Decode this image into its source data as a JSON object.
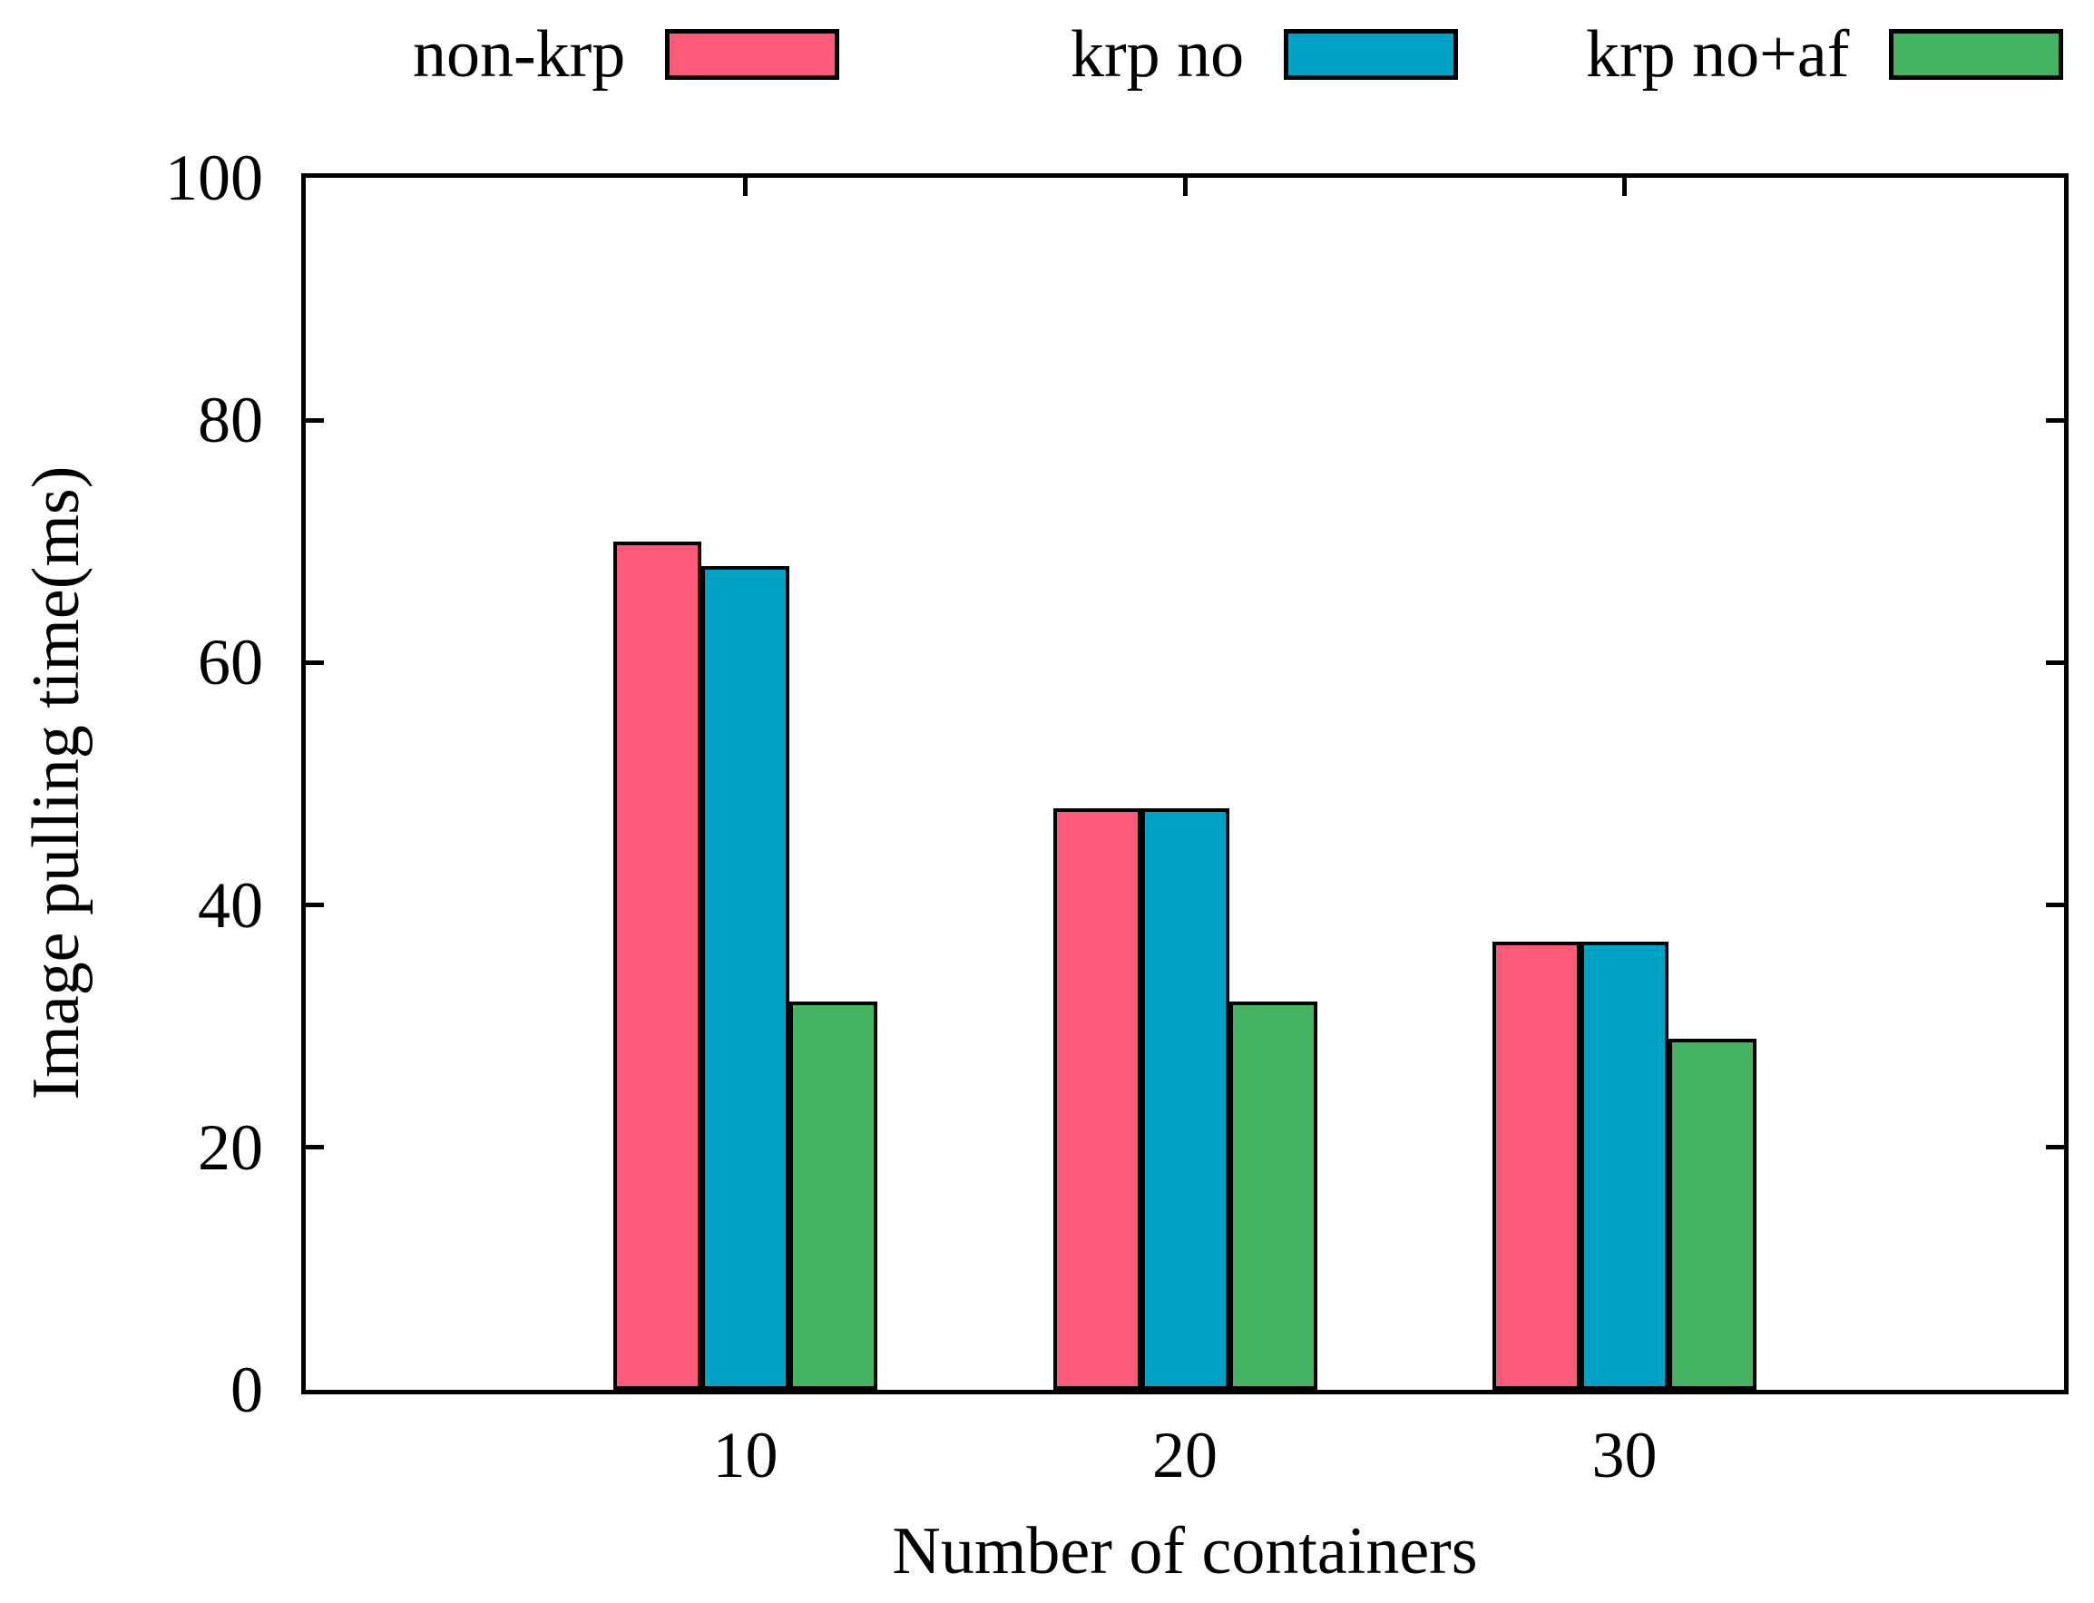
{
  "chart_data": {
    "type": "bar",
    "title": "",
    "categories": [
      "10",
      "20",
      "30"
    ],
    "series": [
      {
        "name": "non-krp",
        "color": "#FB5A79",
        "values": [
          70,
          48,
          37
        ]
      },
      {
        "name": "krp no",
        "color": "#00A2C6",
        "values": [
          68,
          48,
          37
        ]
      },
      {
        "name": "krp no+af",
        "color": "#44B362",
        "values": [
          32,
          32,
          29
        ]
      }
    ],
    "xlabel": "Number of containers",
    "ylabel": "Image pulling time(ms)",
    "ylim": [
      0,
      100
    ],
    "yticks": [
      0,
      20,
      40,
      60,
      80,
      100
    ],
    "grid": false,
    "legend_position": "top",
    "axis_color": "#000000",
    "bar_border_color": "#000000",
    "background_color": "#ffffff"
  }
}
